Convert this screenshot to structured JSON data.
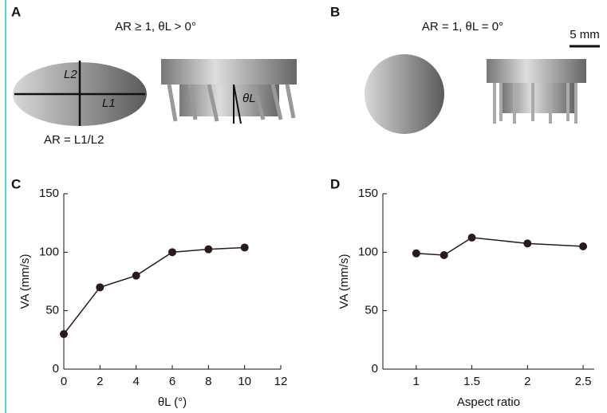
{
  "illustrations": {
    "A": {
      "label": "A",
      "caption": "AR ≥ 1, θL > 0°",
      "l2": "L2",
      "l1": "L1",
      "ratio": "AR = L1/L2",
      "angle": "θL"
    },
    "B": {
      "label": "B",
      "caption": "AR = 1, θL = 0°",
      "scale": "5 mm"
    }
  },
  "chart_data": [
    {
      "type": "line",
      "panel": "C",
      "x": [
        0,
        2,
        4,
        6,
        8,
        10
      ],
      "values": [
        30,
        70,
        80,
        100,
        102.5,
        104
      ],
      "color": "#2a1a1a",
      "xlim": [
        0,
        12
      ],
      "xticks": [
        0,
        2,
        4,
        6,
        8,
        10,
        12
      ],
      "ylim": [
        0,
        150
      ],
      "yticks": [
        0,
        50,
        100,
        150
      ],
      "xlabel": "θL (°)",
      "ylabel": "VA (mm/s)"
    },
    {
      "type": "line",
      "panel": "D",
      "x": [
        1,
        1.25,
        1.5,
        2,
        2.5
      ],
      "values": [
        99,
        97.5,
        112.5,
        107.5,
        105
      ],
      "color": "#2a1a1a",
      "xlim": [
        0.7,
        2.6
      ],
      "xticks": [
        1,
        1.5,
        2,
        2.5
      ],
      "ylim": [
        0,
        150
      ],
      "yticks": [
        0,
        50,
        100,
        150
      ],
      "xlabel": "Aspect ratio",
      "ylabel": "VA (mm/s)"
    }
  ]
}
